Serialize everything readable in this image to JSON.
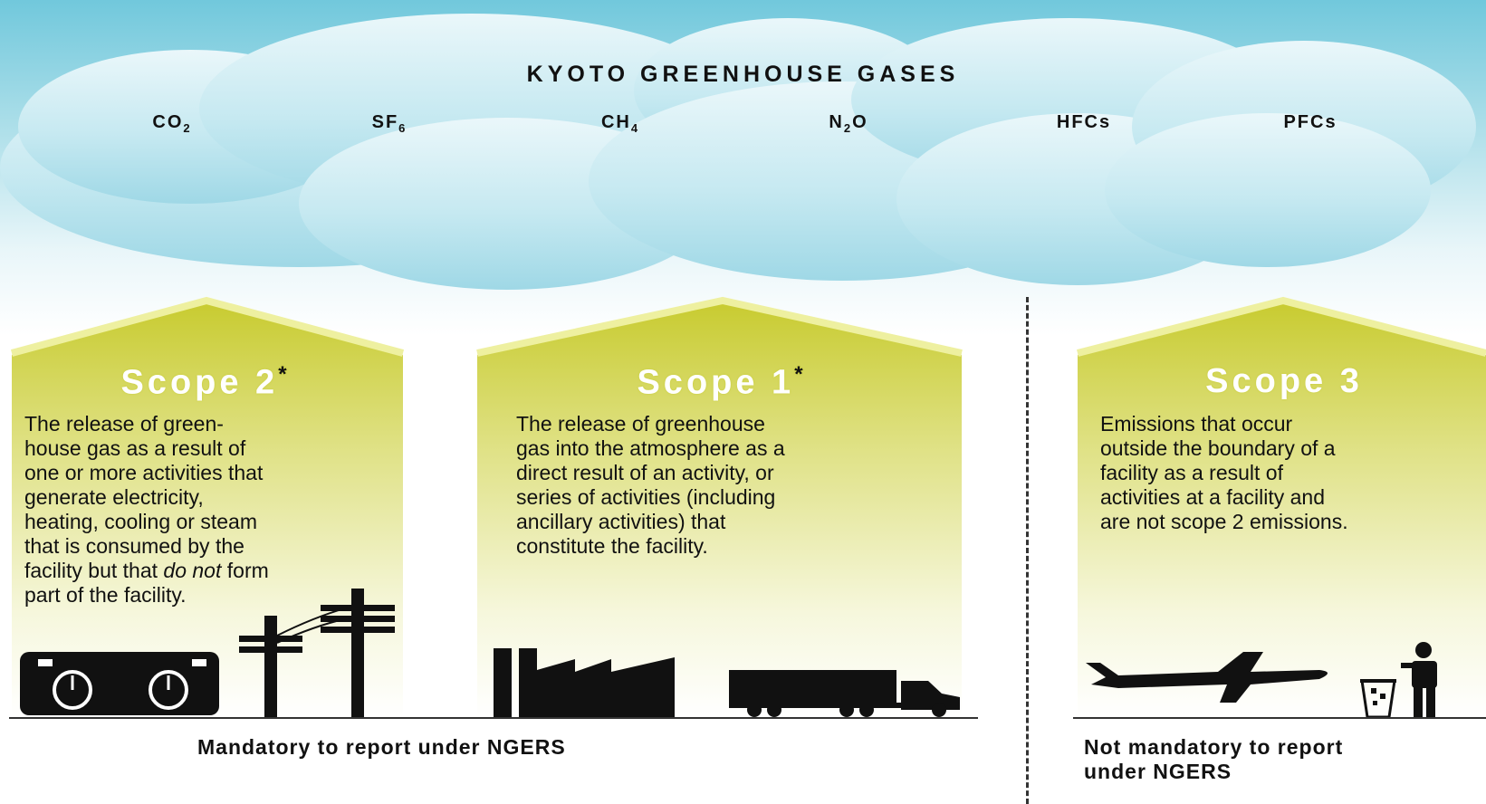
{
  "cloud": {
    "title": "KYOTO GREENHOUSE GASES",
    "gases": [
      {
        "name": "CO",
        "sub": "2"
      },
      {
        "name": "SF",
        "sub": "6"
      },
      {
        "name": "CH",
        "sub": "4"
      },
      {
        "name": "N",
        "sub": "2",
        "suffix": "O"
      },
      {
        "name": "HFCs",
        "sub": ""
      },
      {
        "name": "PFCs",
        "sub": ""
      }
    ]
  },
  "scopes": {
    "scope2": {
      "title": "Scope 2",
      "mark": "*",
      "text_a": "The release of green-\nhouse gas as a result of\none or more activities that\ngenerate electricity,\nheating, cooling or steam\nthat is consumed by the\nfacility but that ",
      "text_em": "do not",
      "text_b": " form\npart of the facility."
    },
    "scope1": {
      "title": "Scope 1",
      "mark": "*",
      "text": "The release of greenhouse\ngas into the atmosphere as a\ndirect result of an activity, or\nseries of activities (including\nancillary activities) that\nconstitute the facility."
    },
    "scope3": {
      "title": "Scope 3",
      "mark": "",
      "text": "Emissions that occur\noutside the boundary of a\nfacility as a result of\nactivities at a facility and\nare not scope 2 emissions."
    }
  },
  "footer": {
    "mandatory": "Mandatory to report under NGERS",
    "not_mandatory": "Not mandatory to report\nunder NGERS"
  },
  "colors": {
    "sky": "#71c8dc",
    "cloud": "#bfe6ef",
    "house_top": "#c9cc36",
    "house_bottom": "#ffffff",
    "roof_stripe": "#e8ea7a"
  },
  "icons": [
    "meter-icon",
    "power-pole-icon",
    "factory-icon",
    "truck-icon",
    "airplane-icon",
    "rubbish-bin-icon",
    "person-icon"
  ]
}
